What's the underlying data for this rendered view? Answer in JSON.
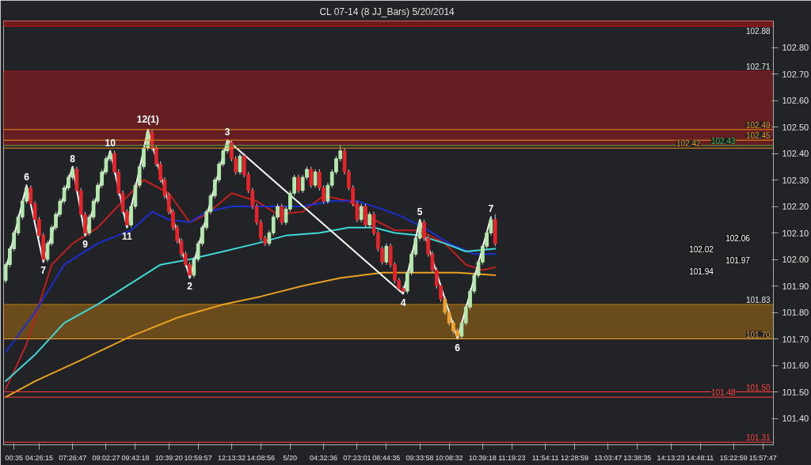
{
  "chart_data": {
    "type": "candlestick",
    "title": "CL 07-14 (8 JJ_Bars)  5/20/2014",
    "categories": [
      null,
      null,
      "00:35",
      null,
      null,
      null,
      null,
      null,
      "04:26:15",
      null,
      null,
      null,
      null,
      null,
      null,
      null,
      "07:26:47",
      null,
      null,
      null,
      null,
      null,
      null,
      null,
      "09:02:27",
      null,
      null,
      null,
      null,
      null,
      null,
      "09:43:18",
      null,
      null,
      null,
      null,
      null,
      null,
      null,
      "10:39:20",
      null,
      null,
      null,
      null,
      null,
      null,
      "10:59:57",
      null,
      null,
      null,
      null,
      null,
      null,
      null,
      "12:13:32",
      null,
      null,
      null,
      null,
      null,
      null,
      "14:08:56",
      null,
      null,
      null,
      null,
      null,
      null,
      "5/20",
      null,
      null,
      null,
      null,
      null,
      null,
      null,
      "04:32:36",
      null,
      null,
      null,
      null,
      null,
      null,
      null,
      "07:23:01",
      null,
      null,
      null,
      null,
      null,
      null,
      "08:44:35",
      null,
      null,
      null,
      null,
      null,
      null,
      null,
      "09:33:58",
      null,
      null,
      null,
      null,
      null,
      null,
      "10:08:32",
      null,
      null,
      null,
      null,
      null,
      null,
      null,
      "10:39:18",
      null,
      null,
      null,
      null,
      null,
      null,
      "11:19:23",
      null,
      null,
      null,
      null,
      null,
      null,
      null,
      "11:54:11",
      null,
      null,
      null,
      null,
      null,
      null,
      "12:28:59",
      null,
      null,
      null,
      null,
      null,
      null,
      null,
      "13:03:47",
      null,
      null,
      null,
      null,
      null,
      null,
      "13:38:35",
      null,
      null,
      null,
      null,
      null,
      null,
      null,
      "14:13:23",
      null,
      null,
      null,
      null,
      null,
      null,
      "14:48:11",
      null,
      null,
      null,
      null,
      null,
      null,
      null,
      "15:22:59",
      null,
      null,
      null,
      null,
      null,
      null,
      "15:57:47",
      null,
      null
    ],
    "ohlc": [
      [
        101.92,
        101.99,
        101.91,
        101.98
      ],
      [
        101.98,
        102.05,
        101.97,
        102.04
      ],
      [
        102.04,
        102.11,
        102.03,
        102.1
      ],
      [
        102.1,
        102.17,
        102.09,
        102.16
      ],
      [
        102.16,
        102.23,
        102.15,
        102.22
      ],
      [
        102.22,
        102.28,
        102.21,
        102.27
      ],
      [
        102.27,
        102.28,
        102.2,
        102.21
      ],
      [
        102.21,
        102.22,
        102.14,
        102.15
      ],
      [
        102.15,
        102.16,
        102.08,
        102.09
      ],
      [
        102.09,
        102.1,
        101.99,
        102.0
      ],
      [
        102.0,
        102.07,
        101.99,
        102.06
      ],
      [
        102.06,
        102.13,
        102.05,
        102.12
      ],
      [
        102.12,
        102.18,
        102.11,
        102.17
      ],
      [
        102.17,
        102.23,
        102.16,
        102.22
      ],
      [
        102.22,
        102.28,
        102.21,
        102.27
      ],
      [
        102.27,
        102.32,
        102.26,
        102.31
      ],
      [
        102.31,
        102.35,
        102.3,
        102.34
      ],
      [
        102.34,
        102.35,
        102.25,
        102.26
      ],
      [
        102.26,
        102.27,
        102.16,
        102.17
      ],
      [
        102.17,
        102.18,
        102.09,
        102.1
      ],
      [
        102.1,
        102.17,
        102.09,
        102.16
      ],
      [
        102.16,
        102.23,
        102.15,
        102.22
      ],
      [
        102.22,
        102.29,
        102.21,
        102.28
      ],
      [
        102.28,
        102.34,
        102.27,
        102.33
      ],
      [
        102.33,
        102.39,
        102.32,
        102.38
      ],
      [
        102.38,
        102.41,
        102.37,
        102.4
      ],
      [
        102.4,
        102.41,
        102.32,
        102.33
      ],
      [
        102.33,
        102.34,
        102.24,
        102.25
      ],
      [
        102.25,
        102.26,
        102.17,
        102.18
      ],
      [
        102.18,
        102.19,
        102.12,
        102.13
      ],
      [
        102.13,
        102.21,
        102.12,
        102.2
      ],
      [
        102.2,
        102.29,
        102.19,
        102.28
      ],
      [
        102.28,
        102.36,
        102.27,
        102.35
      ],
      [
        102.35,
        102.43,
        102.34,
        102.42
      ],
      [
        102.42,
        102.49,
        102.41,
        102.48
      ],
      [
        102.48,
        102.49,
        102.41,
        102.42
      ],
      [
        102.42,
        102.43,
        102.35,
        102.36
      ],
      [
        102.36,
        102.37,
        102.29,
        102.3
      ],
      [
        102.3,
        102.31,
        102.23,
        102.24
      ],
      [
        102.24,
        102.25,
        102.17,
        102.18
      ],
      [
        102.18,
        102.19,
        102.11,
        102.12
      ],
      [
        102.12,
        102.13,
        102.06,
        102.07
      ],
      [
        102.07,
        102.08,
        102.01,
        102.02
      ],
      [
        102.02,
        102.03,
        101.97,
        101.98
      ],
      [
        101.98,
        101.99,
        101.93,
        101.94
      ],
      [
        101.94,
        102.01,
        101.93,
        102.0
      ],
      [
        102.0,
        102.07,
        101.99,
        102.06
      ],
      [
        102.06,
        102.13,
        102.05,
        102.12
      ],
      [
        102.12,
        102.19,
        102.11,
        102.18
      ],
      [
        102.18,
        102.25,
        102.17,
        102.24
      ],
      [
        102.24,
        102.31,
        102.23,
        102.3
      ],
      [
        102.3,
        102.37,
        102.29,
        102.36
      ],
      [
        102.36,
        102.42,
        102.35,
        102.41
      ],
      [
        102.41,
        102.45,
        102.4,
        102.44
      ],
      [
        102.44,
        102.45,
        102.37,
        102.38
      ],
      [
        102.38,
        102.39,
        102.32,
        102.33
      ],
      [
        102.33,
        102.4,
        102.32,
        102.39
      ],
      [
        102.39,
        102.4,
        102.31,
        102.32
      ],
      [
        102.32,
        102.33,
        102.25,
        102.26
      ],
      [
        102.26,
        102.27,
        102.19,
        102.2
      ],
      [
        102.2,
        102.21,
        102.13,
        102.14
      ],
      [
        102.14,
        102.15,
        102.07,
        102.08
      ],
      [
        102.08,
        102.09,
        102.05,
        102.06
      ],
      [
        102.06,
        102.11,
        102.05,
        102.1
      ],
      [
        102.1,
        102.17,
        102.09,
        102.16
      ],
      [
        102.16,
        102.21,
        102.15,
        102.2
      ],
      [
        102.2,
        102.21,
        102.13,
        102.14
      ],
      [
        102.14,
        102.2,
        102.13,
        102.19
      ],
      [
        102.19,
        102.26,
        102.18,
        102.25
      ],
      [
        102.25,
        102.32,
        102.24,
        102.31
      ],
      [
        102.31,
        102.32,
        102.25,
        102.26
      ],
      [
        102.26,
        102.32,
        102.25,
        102.31
      ],
      [
        102.31,
        102.35,
        102.3,
        102.34
      ],
      [
        102.34,
        102.35,
        102.27,
        102.28
      ],
      [
        102.28,
        102.34,
        102.27,
        102.33
      ],
      [
        102.33,
        102.34,
        102.26,
        102.27
      ],
      [
        102.27,
        102.28,
        102.21,
        102.22
      ],
      [
        102.22,
        102.29,
        102.21,
        102.28
      ],
      [
        102.28,
        102.34,
        102.27,
        102.33
      ],
      [
        102.33,
        102.39,
        102.32,
        102.38
      ],
      [
        102.38,
        102.43,
        102.37,
        102.41
      ],
      [
        102.41,
        102.42,
        102.32,
        102.33
      ],
      [
        102.33,
        102.34,
        102.26,
        102.27
      ],
      [
        102.27,
        102.28,
        102.2,
        102.21
      ],
      [
        102.21,
        102.22,
        102.14,
        102.15
      ],
      [
        102.15,
        102.21,
        102.14,
        102.2
      ],
      [
        102.2,
        102.21,
        102.12,
        102.13
      ],
      [
        102.13,
        102.18,
        102.12,
        102.17
      ],
      [
        102.17,
        102.18,
        102.09,
        102.1
      ],
      [
        102.1,
        102.11,
        102.03,
        102.04
      ],
      [
        102.04,
        102.05,
        101.98,
        101.99
      ],
      [
        101.99,
        102.06,
        101.98,
        102.05
      ],
      [
        102.05,
        102.06,
        101.97,
        101.98
      ],
      [
        101.98,
        101.99,
        101.91,
        101.92
      ],
      [
        101.92,
        101.93,
        101.88,
        101.89
      ],
      [
        101.89,
        101.9,
        101.87,
        101.88
      ],
      [
        101.88,
        101.96,
        101.87,
        101.95
      ],
      [
        101.95,
        102.03,
        101.94,
        102.02
      ],
      [
        102.02,
        102.09,
        102.01,
        102.08
      ],
      [
        102.08,
        102.15,
        102.07,
        102.14
      ],
      [
        102.14,
        102.15,
        102.07,
        102.08
      ],
      [
        102.08,
        102.09,
        102.01,
        102.02
      ],
      [
        102.02,
        102.03,
        101.95,
        101.96
      ],
      [
        101.96,
        101.97,
        101.89,
        101.9
      ],
      [
        101.9,
        101.91,
        101.84,
        101.85
      ],
      [
        101.85,
        101.86,
        101.79,
        101.8
      ],
      [
        101.8,
        101.81,
        101.75,
        101.76
      ],
      [
        101.76,
        101.77,
        101.72,
        101.73
      ],
      [
        101.73,
        101.74,
        101.7,
        101.71
      ],
      [
        101.71,
        101.77,
        101.7,
        101.76
      ],
      [
        101.76,
        101.83,
        101.75,
        101.82
      ],
      [
        101.82,
        101.89,
        101.81,
        101.88
      ],
      [
        101.88,
        101.95,
        101.87,
        101.94
      ],
      [
        101.94,
        102.0,
        101.93,
        101.99
      ],
      [
        101.99,
        102.06,
        101.98,
        102.05
      ],
      [
        102.05,
        102.11,
        102.04,
        102.1
      ],
      [
        102.1,
        102.16,
        102.09,
        102.15
      ],
      [
        102.15,
        102.17,
        102.05,
        102.06
      ],
      null,
      null,
      null,
      null,
      null,
      null,
      null,
      null,
      null,
      null,
      null,
      null,
      null,
      null,
      null,
      null,
      null,
      null,
      null,
      null,
      null,
      null,
      null,
      null,
      null,
      null,
      null,
      null,
      null,
      null,
      null,
      null,
      null,
      null,
      null,
      null,
      null,
      null,
      null,
      null,
      null,
      null,
      null,
      null,
      null,
      null,
      null,
      null,
      null,
      null,
      null,
      null,
      null,
      null,
      null,
      null,
      null,
      null,
      null,
      null,
      null,
      null,
      null,
      null,
      null,
      null
    ],
    "colors": [
      "#b5e8ad",
      "#b5e8ad",
      "#b5e8ad",
      "#b5e8ad",
      "#b5e8ad",
      "#b5e8ad",
      "#e3262b",
      "#e3262b",
      "#e3262b",
      "#e3262b",
      "#b5e8ad",
      "#b5e8ad",
      "#b5e8ad",
      "#b5e8ad",
      "#b5e8ad",
      "#b5e8ad",
      "#b5e8ad",
      "#e3262b",
      "#e3262b",
      "#e3262b",
      "#b5e8ad",
      "#b5e8ad",
      "#b5e8ad",
      "#b5e8ad",
      "#b5e8ad",
      "#b5e8ad",
      "#e3262b",
      "#e3262b",
      "#e3262b",
      "#e3262b",
      "#b5e8ad",
      "#b5e8ad",
      "#b5e8ad",
      "#b5e8ad",
      "#b5e8ad",
      "#e3262b",
      "#e3262b",
      "#e3262b",
      "#e3262b",
      "#e3262b",
      "#e3262b",
      "#e3262b",
      "#e3262b",
      "#e3262b",
      "#e3262b",
      "#b5e8ad",
      "#b5e8ad",
      "#b5e8ad",
      "#b5e8ad",
      "#b5e8ad",
      "#b5e8ad",
      "#b5e8ad",
      "#b5e8ad",
      "#b5e8ad",
      "#e3262b",
      "#e3262b",
      "#b5e8ad",
      "#e3262b",
      "#e3262b",
      "#e3262b",
      "#e3262b",
      "#e3262b",
      "#e3262b",
      "#b5e8ad",
      "#b5e8ad",
      "#b5e8ad",
      "#e3262b",
      "#b5e8ad",
      "#b5e8ad",
      "#b5e8ad",
      "#e3262b",
      "#b5e8ad",
      "#b5e8ad",
      "#e3262b",
      "#b5e8ad",
      "#e3262b",
      "#e3262b",
      "#b5e8ad",
      "#b5e8ad",
      "#b5e8ad",
      "#b5e8ad",
      "#e3262b",
      "#e3262b",
      "#e3262b",
      "#e3262b",
      "#b5e8ad",
      "#e3262b",
      "#b5e8ad",
      "#e3262b",
      "#e3262b",
      "#e3262b",
      "#b5e8ad",
      "#e3262b",
      "#e3262b",
      "#e3262b",
      "#e3262b",
      "#b5e8ad",
      "#b5e8ad",
      "#b5e8ad",
      "#b5e8ad",
      "#e3262b",
      "#e3262b",
      "#e3262b",
      "#e3262b",
      "#e3262b",
      "#f0a030",
      "#f0a030",
      "#f0a030",
      "#f0a030",
      "#b5e8ad",
      "#b5e8ad",
      "#b5e8ad",
      "#b5e8ad",
      "#b5e8ad",
      "#b5e8ad",
      "#b5e8ad",
      "#b5e8ad",
      "#e3262b",
      null,
      null,
      null,
      null,
      null,
      null,
      null,
      null,
      null,
      null,
      null,
      null,
      null,
      null,
      null,
      null,
      null,
      null,
      null,
      null,
      null,
      null,
      null,
      null,
      null,
      null,
      null,
      null,
      null,
      null,
      null,
      null,
      null,
      null,
      null,
      null,
      null,
      null,
      null,
      null,
      null,
      null,
      null,
      null,
      null,
      null,
      null,
      null,
      null,
      null,
      null,
      null,
      null,
      null,
      null,
      null,
      null,
      null,
      null,
      null,
      null,
      null,
      null,
      null,
      null,
      null
    ],
    "series": [
      {
        "type": "line",
        "color": "#c0201f",
        "values": [
          101.51,
          null,
          null,
          null,
          null,
          101.68,
          null,
          null,
          null,
          null,
          null,
          101.98,
          null,
          null,
          null,
          null,
          102.06,
          null,
          null,
          null,
          null,
          null,
          102.12,
          null,
          null,
          null,
          null,
          null,
          102.22,
          null,
          null,
          null,
          null,
          102.3,
          null,
          null,
          null,
          null,
          null,
          102.25,
          null,
          null,
          null,
          null,
          102.14,
          null,
          null,
          null,
          102.17,
          null,
          null,
          null,
          null,
          null,
          102.25,
          null,
          null,
          null,
          null,
          null,
          102.22,
          null,
          null,
          null,
          null,
          102.17,
          null,
          null,
          null,
          null,
          null,
          102.18,
          null,
          null,
          null,
          null,
          102.24,
          null,
          null,
          null,
          null,
          null,
          102.22,
          null,
          null,
          null,
          null,
          null,
          102.15,
          null,
          null,
          null,
          null,
          102.11,
          null,
          null,
          null,
          null,
          null,
          102.11,
          null,
          null,
          null,
          null,
          null,
          102.06,
          null,
          null,
          null,
          null,
          101.98,
          null,
          null,
          null,
          101.96,
          null,
          null,
          101.97,
          null,
          null,
          null,
          null,
          null,
          null,
          null,
          null,
          null,
          null,
          null,
          null,
          null,
          null,
          null,
          null,
          null,
          null,
          null,
          null,
          null,
          null,
          null,
          null,
          null,
          null,
          null,
          null,
          null,
          null,
          null,
          null,
          null,
          null,
          null,
          null,
          null,
          null,
          null,
          null,
          null,
          null,
          null,
          null,
          null,
          null,
          null,
          null,
          null,
          null,
          null,
          null,
          null,
          null,
          null,
          null,
          null,
          null,
          null,
          null,
          null,
          null,
          null,
          null,
          null,
          null
        ]
      },
      {
        "type": "line",
        "color": "#1a2fd0",
        "values": [
          101.65,
          null,
          null,
          null,
          null,
          null,
          null,
          101.8,
          null,
          null,
          null,
          null,
          null,
          null,
          101.98,
          null,
          null,
          null,
          null,
          null,
          null,
          null,
          102.06,
          null,
          null,
          null,
          null,
          null,
          null,
          null,
          102.11,
          null,
          null,
          null,
          null,
          102.18,
          null,
          null,
          null,
          102.15,
          null,
          null,
          null,
          null,
          102.14,
          null,
          null,
          null,
          102.18,
          null,
          null,
          null,
          null,
          null,
          102.2,
          null,
          null,
          null,
          null,
          null,
          null,
          102.2,
          null,
          null,
          null,
          null,
          null,
          null,
          null,
          null,
          null,
          102.2,
          null,
          null,
          null,
          null,
          null,
          null,
          102.22,
          null,
          null,
          null,
          null,
          null,
          102.22,
          null,
          null,
          null,
          null,
          null,
          102.19,
          null,
          null,
          null,
          null,
          102.16,
          null,
          null,
          null,
          null,
          null,
          102.11,
          null,
          null,
          null,
          null,
          102.06,
          null,
          null,
          null,
          null,
          null,
          102.02,
          null,
          null,
          null,
          null,
          102.02,
          null,
          null,
          null,
          null,
          null,
          null,
          null,
          null,
          null,
          null,
          null,
          null,
          null,
          null,
          null,
          null,
          null,
          null,
          null,
          null,
          null,
          null,
          null,
          null,
          null,
          null,
          null,
          null,
          null,
          null,
          null,
          null,
          null,
          null,
          null,
          null,
          null,
          null,
          null,
          null,
          null,
          null,
          null,
          null,
          null,
          null,
          null,
          null,
          null,
          null,
          null,
          null,
          null,
          null,
          null,
          null,
          null,
          null,
          null,
          null,
          null,
          null,
          null,
          null,
          null,
          null
        ]
      },
      {
        "type": "line",
        "color": "#40d8d8",
        "values": [
          101.54,
          null,
          null,
          null,
          null,
          null,
          null,
          101.64,
          null,
          null,
          null,
          null,
          null,
          null,
          101.76,
          null,
          null,
          null,
          null,
          null,
          null,
          null,
          101.83,
          null,
          null,
          null,
          null,
          null,
          null,
          null,
          101.91,
          null,
          null,
          null,
          null,
          null,
          null,
          101.98,
          null,
          null,
          null,
          null,
          null,
          null,
          102.0,
          null,
          null,
          null,
          null,
          null,
          null,
          null,
          102.03,
          null,
          null,
          null,
          null,
          null,
          null,
          null,
          102.06,
          null,
          null,
          null,
          null,
          null,
          null,
          102.09,
          null,
          null,
          null,
          null,
          null,
          null,
          null,
          102.1,
          null,
          null,
          null,
          null,
          null,
          null,
          102.12,
          null,
          null,
          null,
          null,
          null,
          102.12,
          null,
          null,
          null,
          null,
          102.1,
          null,
          null,
          null,
          null,
          null,
          102.09,
          null,
          null,
          null,
          null,
          null,
          102.06,
          null,
          null,
          null,
          null,
          102.03,
          null,
          null,
          null,
          null,
          null,
          null,
          102.04,
          null,
          null,
          null,
          null,
          null,
          null,
          null,
          null,
          null,
          null,
          null,
          null,
          null,
          null,
          null,
          null,
          null,
          null,
          null,
          null,
          null,
          null,
          null,
          null,
          null,
          null,
          null,
          null,
          null,
          null,
          null,
          null,
          null,
          null,
          null,
          null,
          null,
          null,
          null,
          null,
          null,
          null,
          null,
          null,
          null,
          null,
          null,
          null,
          null,
          null,
          null,
          null,
          null,
          null,
          null,
          null,
          null,
          null,
          null,
          null,
          null,
          null,
          null,
          null,
          null,
          null
        ]
      },
      {
        "type": "line",
        "color": "#e8a020",
        "values": [
          101.48,
          null,
          null,
          null,
          null,
          null,
          null,
          101.54,
          null,
          null,
          null,
          null,
          null,
          null,
          null,
          null,
          null,
          null,
          101.62,
          null,
          null,
          null,
          null,
          null,
          null,
          null,
          null,
          null,
          null,
          null,
          101.71,
          null,
          null,
          null,
          null,
          null,
          null,
          null,
          null,
          null,
          null,
          101.78,
          null,
          null,
          null,
          null,
          null,
          null,
          null,
          null,
          null,
          null,
          101.83,
          null,
          null,
          null,
          null,
          null,
          null,
          null,
          null,
          101.86,
          null,
          null,
          null,
          null,
          null,
          null,
          null,
          null,
          null,
          101.9,
          null,
          null,
          null,
          null,
          null,
          null,
          null,
          null,
          101.93,
          null,
          null,
          null,
          null,
          null,
          null,
          null,
          null,
          null,
          101.95,
          null,
          null,
          null,
          null,
          null,
          null,
          null,
          null,
          101.95,
          null,
          null,
          null,
          null,
          null,
          null,
          null,
          null,
          101.95,
          null,
          null,
          null,
          null,
          null,
          null,
          null,
          null,
          101.94,
          null,
          null,
          null,
          null,
          null,
          null,
          null,
          null,
          null,
          null,
          null,
          null,
          null,
          null,
          null,
          null,
          null,
          null,
          null,
          null,
          null,
          null,
          null,
          null,
          null,
          null,
          null,
          null,
          null,
          null,
          null,
          null,
          null,
          null,
          null,
          null,
          null,
          null,
          null,
          null,
          null,
          null,
          null,
          null,
          null,
          null,
          null,
          null,
          null,
          null,
          null,
          null,
          null,
          null,
          null,
          null,
          null,
          null,
          null,
          null,
          null,
          null,
          null,
          null,
          null,
          null
        ]
      },
      {
        "type": "line",
        "color": "#ffffff",
        "values": [
          101.96,
          null,
          null,
          null,
          null,
          102.28,
          null,
          null,
          null,
          101.99,
          null,
          null,
          null,
          null,
          null,
          null,
          102.35,
          null,
          null,
          102.09,
          null,
          null,
          null,
          null,
          null,
          102.41,
          null,
          null,
          null,
          102.12,
          null,
          null,
          null,
          null,
          102.49,
          null,
          null,
          null,
          null,
          null,
          null,
          null,
          null,
          null,
          101.93,
          null,
          null,
          null,
          null,
          null,
          null,
          null,
          null,
          102.45,
          null,
          null,
          null,
          null,
          null,
          null,
          null,
          null,
          null,
          null,
          null,
          null,
          null,
          null,
          null,
          null,
          null,
          null,
          null,
          null,
          null,
          null,
          null,
          null,
          null,
          null,
          null,
          null,
          null,
          null,
          null,
          null,
          null,
          null,
          null,
          null,
          null,
          null,
          null,
          null,
          null,
          101.87,
          null,
          null,
          null,
          102.15,
          null,
          null,
          null,
          null,
          null,
          null,
          null,
          null,
          101.7,
          null,
          null,
          null,
          null,
          null,
          null,
          null,
          102.16,
          null,
          null,
          null,
          null,
          null,
          null,
          null,
          null,
          null,
          null,
          null,
          null,
          null,
          null,
          null,
          null,
          null,
          null,
          null,
          null,
          null,
          null,
          null,
          null,
          null,
          null,
          null,
          null,
          null,
          null,
          null,
          null,
          null,
          null,
          null,
          null,
          null,
          null,
          null,
          null,
          null,
          null,
          null,
          null,
          null,
          null,
          null,
          null,
          null,
          null,
          null,
          null,
          null,
          null,
          null,
          null,
          null,
          null,
          null,
          null,
          null,
          null,
          null,
          null,
          null,
          null,
          null
        ]
      }
    ],
    "bands": [
      {
        "axis": "y",
        "from": 102.88,
        "to": 102.9,
        "label": "102.88",
        "color": "#e01010"
      },
      {
        "axis": "y",
        "from": 102.43,
        "to": 102.71,
        "label": "102.71",
        "color": "#c8141b"
      },
      {
        "axis": "y",
        "from": 101.7,
        "to": 101.83,
        "label": "101.83",
        "color": "#d68a10"
      }
    ],
    "ref_lines": [
      {
        "axis": "y",
        "value": 102.49,
        "label": "102.49",
        "color": "#f0901a"
      },
      {
        "axis": "y",
        "value": 102.45,
        "label": "102.45",
        "color": "#f0901a"
      },
      {
        "axis": "y",
        "value": 102.43,
        "label": "102.43",
        "color": "#4ab04a"
      },
      {
        "axis": "y",
        "value": 102.42,
        "label": "102.42",
        "color": "#f0901a"
      },
      {
        "axis": "y",
        "value": 101.7,
        "label": "101.70",
        "color": "#f0a030"
      },
      {
        "axis": "y",
        "value": 101.5,
        "label": "101.50",
        "color": "#ff4040"
      },
      {
        "axis": "y",
        "value": 101.48,
        "label": "101.48",
        "color": "#ff4040"
      },
      {
        "axis": "y",
        "value": 101.31,
        "label": "101.31",
        "color": "#ff4040"
      }
    ],
    "annotations": [
      {
        "text": "6",
        "y": 102.28
      },
      {
        "text": "7",
        "y": 101.99
      },
      {
        "text": "8",
        "y": 102.35
      },
      {
        "text": "9",
        "y": 102.09
      },
      {
        "text": "10",
        "y": 102.41
      },
      {
        "text": "11",
        "y": 102.12
      },
      {
        "text": "12(1)",
        "y": 102.49
      },
      {
        "text": "2",
        "y": 101.93
      },
      {
        "text": "3",
        "y": 102.45
      },
      {
        "text": "4",
        "y": 101.87
      },
      {
        "text": "5",
        "y": 102.15
      },
      {
        "text": "6",
        "y": 101.7
      },
      {
        "text": "7",
        "y": 102.16
      },
      "102.06",
      "102.02",
      "101.97",
      "101.94"
    ],
    "ylim": [
      101.3,
      102.9
    ],
    "yticks": [
      {
        "value": 101.4,
        "label": "101.40"
      },
      {
        "value": 101.5,
        "label": "101.50"
      },
      {
        "value": 101.6,
        "label": "101.60"
      },
      {
        "value": 101.7,
        "label": "101.70"
      },
      {
        "value": 101.8,
        "label": "101.80"
      },
      {
        "value": 101.9,
        "label": "101.90"
      },
      {
        "value": 102.0,
        "label": "102.00"
      },
      {
        "value": 102.1,
        "label": "102.10"
      },
      {
        "value": 102.2,
        "label": "102.20"
      },
      {
        "value": 102.3,
        "label": "102.30"
      },
      {
        "value": 102.4,
        "label": "102.40"
      },
      {
        "value": 102.5,
        "label": "102.50"
      },
      {
        "value": 102.6,
        "label": "102.60"
      },
      {
        "value": 102.7,
        "label": "102.70"
      },
      {
        "value": 102.8,
        "label": "102.80"
      }
    ]
  }
}
